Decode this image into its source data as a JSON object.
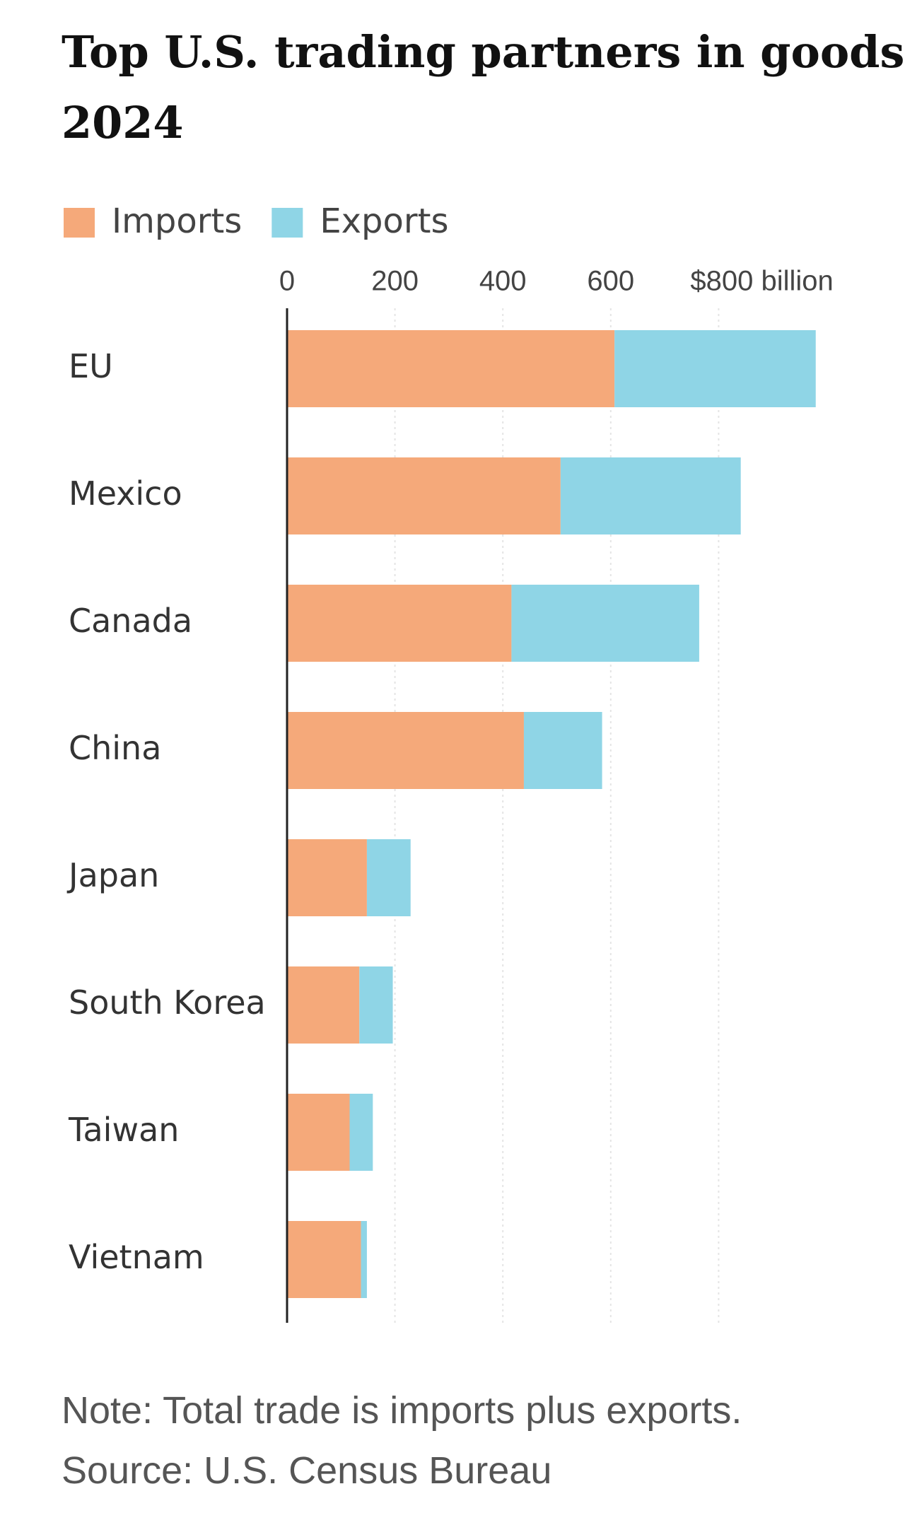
{
  "chart_data": {
    "type": "stacked-barh",
    "title": [
      "Top U.S. trading partners in goods,",
      "2024"
    ],
    "categories": [
      "EU",
      "Mexico",
      "Canada",
      "China",
      "Japan",
      "South Korea",
      "Taiwan",
      "Vietnam"
    ],
    "series": [
      {
        "name": "Imports",
        "color": "#f5a97a",
        "values": [
          607,
          507,
          416,
          439,
          148,
          134,
          116,
          137
        ]
      },
      {
        "name": "Exports",
        "color": "#8fd5e6",
        "values": [
          373,
          334,
          348,
          145,
          81,
          62,
          43,
          11
        ]
      }
    ],
    "xlim": [
      0,
      1000
    ],
    "xticks": [
      0,
      200,
      400,
      600,
      {
        "value": 800,
        "label": "$800 billion"
      }
    ],
    "grid": true,
    "note": "Note: Total trade is imports plus exports.",
    "source": "Source: U.S. Census Bureau"
  }
}
